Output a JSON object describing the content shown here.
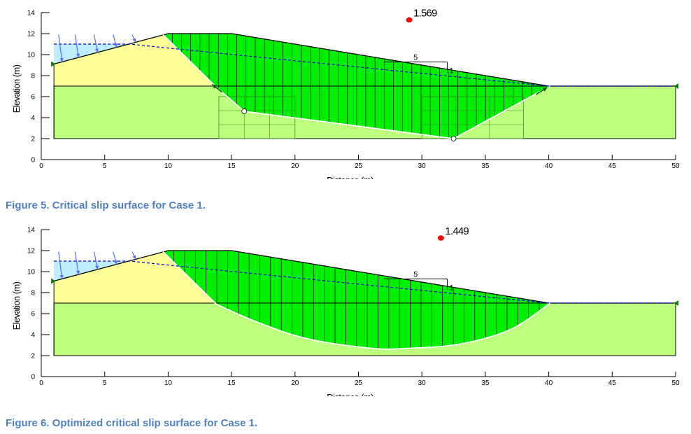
{
  "figures": [
    {
      "caption": "Figure 5.  Critical slip surface for Case 1.",
      "chart_data": {
        "type": "cross-section",
        "xlabel": "Distance (m)",
        "ylabel": "Elevation (m)",
        "xlim": [
          0,
          50
        ],
        "ylim": [
          0,
          14
        ],
        "xticks": [
          0,
          5,
          10,
          15,
          20,
          25,
          30,
          35,
          40,
          45,
          50
        ],
        "yticks": [
          0,
          2,
          4,
          6,
          8,
          10,
          12,
          14
        ],
        "factor_of_safety": "1.569",
        "fos_marker": [
          29,
          13.3
        ],
        "slope_ratio": {
          "run": "5",
          "rise": "1"
        },
        "ground_surface": [
          [
            1,
            9.1
          ],
          [
            10,
            12
          ],
          [
            15,
            12
          ],
          [
            40,
            7
          ],
          [
            50,
            7
          ]
        ],
        "layer_boundary_elevation": 7,
        "base_elevation": 2,
        "water_table": [
          [
            1,
            11
          ],
          [
            7,
            11
          ],
          [
            10.2,
            10.6
          ],
          [
            40,
            7
          ],
          [
            50,
            7
          ]
        ],
        "slip_surface": [
          [
            9.6,
            11.9
          ],
          [
            13.8,
            6.9
          ],
          [
            16,
            4.6
          ],
          [
            32.5,
            2
          ],
          [
            40.1,
            7
          ]
        ],
        "slip_type": "block",
        "slice_count": 42,
        "ponded_water_x": [
          1,
          7
        ],
        "marker_points": [
          [
            16,
            4.6
          ],
          [
            32.5,
            2
          ]
        ]
      }
    },
    {
      "caption": "Figure 6.  Optimized critical slip surface for Case 1.",
      "chart_data": {
        "type": "cross-section",
        "xlabel": "Distance (m)",
        "ylabel": "Elevation (m)",
        "xlim": [
          0,
          50
        ],
        "ylim": [
          0,
          14
        ],
        "xticks": [
          0,
          5,
          10,
          15,
          20,
          25,
          30,
          35,
          40,
          45,
          50
        ],
        "yticks": [
          0,
          2,
          4,
          6,
          8,
          10,
          12,
          14
        ],
        "factor_of_safety": "1.449",
        "fos_marker": [
          31.5,
          13.2
        ],
        "slope_ratio": {
          "run": "5",
          "rise": "1"
        },
        "ground_surface": [
          [
            1,
            9.1
          ],
          [
            10,
            12
          ],
          [
            15,
            12
          ],
          [
            40,
            7
          ],
          [
            50,
            7
          ]
        ],
        "layer_boundary_elevation": 7,
        "base_elevation": 2,
        "water_table": [
          [
            1,
            11
          ],
          [
            7,
            11
          ],
          [
            10.2,
            10.6
          ],
          [
            40,
            7
          ],
          [
            50,
            7
          ]
        ],
        "slip_surface": [
          [
            9.6,
            11.9
          ],
          [
            13.8,
            6.9
          ],
          [
            17,
            5.2
          ],
          [
            21,
            3.6
          ],
          [
            26,
            2.7
          ],
          [
            29,
            2.7
          ],
          [
            33,
            3.1
          ],
          [
            37,
            4.5
          ],
          [
            40.1,
            7
          ]
        ],
        "slip_type": "curved",
        "slice_count": 36,
        "ponded_water_x": [
          1,
          7
        ],
        "marker_points": []
      }
    }
  ],
  "colors": {
    "upper_fill": "#ffff99",
    "lower_fill": "#bfff80",
    "slide_fill": "#00f000",
    "water_fill": "#bdeeff",
    "water_line": "#0000cc",
    "arrow": "#5a6cff",
    "fos_dot": "#ff0000",
    "caption": "#4f81bd",
    "boundary_marker": "#008000"
  }
}
